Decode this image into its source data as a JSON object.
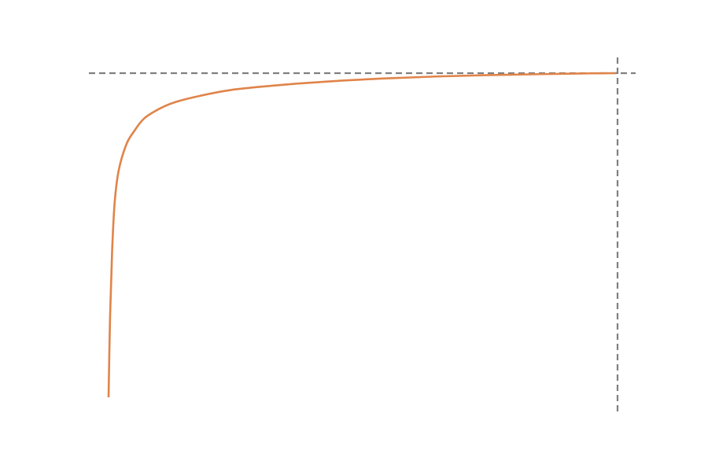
{
  "chart_data": {
    "type": "line",
    "title": "",
    "xlabel": "",
    "ylabel": "",
    "grid": false,
    "xlim": [
      0,
      1
    ],
    "ylim": [
      0,
      1
    ],
    "series": [
      {
        "color": "#e0844a",
        "curve": "concave-saturating",
        "x": [
          0.0,
          0.003,
          0.007,
          0.012,
          0.02,
          0.035,
          0.05,
          0.07,
          0.1,
          0.13,
          0.18,
          0.25,
          0.35,
          0.45,
          0.55,
          0.65,
          0.75,
          0.85,
          0.93,
          1.0
        ],
        "y": [
          0.0,
          0.25,
          0.45,
          0.6,
          0.7,
          0.78,
          0.82,
          0.86,
          0.89,
          0.91,
          0.93,
          0.95,
          0.965,
          0.976,
          0.984,
          0.99,
          0.994,
          0.997,
          0.999,
          1.0
        ]
      }
    ],
    "reference_lines": [
      {
        "orientation": "horizontal",
        "value": 1.0,
        "style": "dashed",
        "color": "#808080"
      },
      {
        "orientation": "vertical",
        "value": 1.0,
        "style": "dashed",
        "color": "#808080"
      }
    ]
  }
}
